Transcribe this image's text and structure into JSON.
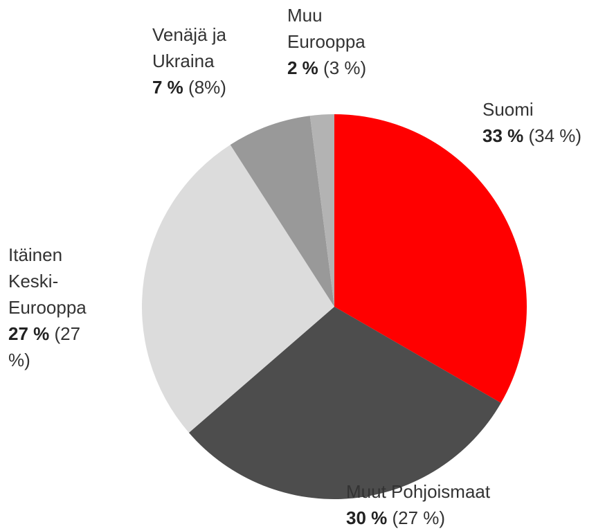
{
  "chart_data": {
    "type": "pie",
    "categories": [
      "Suomi",
      "Muut Pohjoismaat",
      "Itäinen Keski-Eurooppa",
      "Venäjä ja Ukraina",
      "Muu Eurooppa"
    ],
    "values": [
      33,
      30,
      27,
      7,
      2
    ],
    "value_labels": [
      "33 %",
      "30 %",
      "27 %",
      "7 %",
      "2 %"
    ],
    "previous_labels": [
      "(34 %)",
      "(27 %)",
      "(27 %)",
      "(8%)",
      "(3 %)"
    ],
    "colors": [
      "#ff0000",
      "#4d4d4d",
      "#dcdcdc",
      "#999999",
      "#b3b3b3"
    ]
  }
}
